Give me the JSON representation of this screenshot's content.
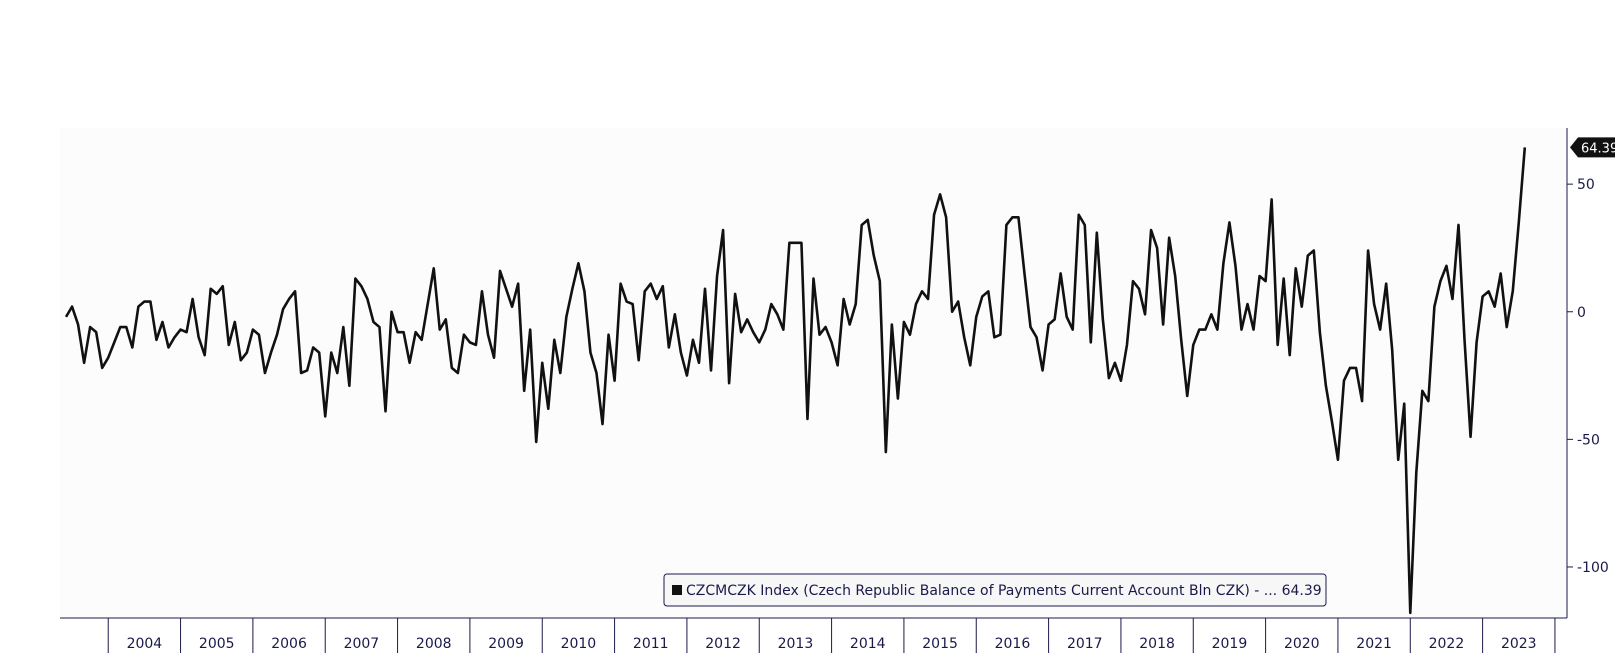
{
  "chart_data": {
    "type": "line",
    "title": "",
    "xlabel": "",
    "ylabel": "",
    "ylim": [
      -120,
      72
    ],
    "xlim": [
      "2003-05",
      "2024-03"
    ],
    "y_ticks": [
      50,
      0,
      -50,
      -100
    ],
    "y_tick_labels": [
      "50",
      "0",
      "-50",
      "-100"
    ],
    "years": [
      "2004",
      "2005",
      "2006",
      "2007",
      "2008",
      "2009",
      "2010",
      "2011",
      "2012",
      "2013",
      "2014",
      "2015",
      "2016",
      "2017",
      "2018",
      "2019",
      "2020",
      "2021",
      "2022",
      "2023"
    ],
    "grid": false,
    "legend_position": "bottom-center",
    "line_color": "#111111",
    "last_value_label": "64.39",
    "series": [
      {
        "name": "CZCMCZK Index (Czech Republic Balance of Payments Current Account Bln CZK) - ... 64.39",
        "start": "2003-06",
        "frequency": "monthly",
        "values": [
          -2,
          2,
          -5,
          -20,
          -6,
          -8,
          -22,
          -18,
          -12,
          -6,
          -6,
          -14,
          2,
          4,
          4,
          -11,
          -4,
          -14,
          -10,
          -7,
          -8,
          5,
          -10,
          -17,
          9,
          7,
          10,
          -13,
          -4,
          -19,
          -16,
          -7,
          -9,
          -24,
          -16,
          -9,
          1,
          5,
          8,
          -24,
          -23,
          -14,
          -16,
          -41,
          -16,
          -24,
          -6,
          -29,
          13,
          10,
          5,
          -4,
          -6,
          -39,
          0,
          -8,
          -8,
          -20,
          -8,
          -11,
          3,
          17,
          -7,
          -3,
          -22,
          -24,
          -9,
          -12,
          -13,
          8,
          -9,
          -18,
          16,
          9,
          2,
          11,
          -31,
          -7,
          -51,
          -20,
          -38,
          -11,
          -24,
          -2,
          9,
          19,
          8,
          -16,
          -24,
          -44,
          -9,
          -27,
          11,
          4,
          3,
          -19,
          8,
          11,
          5,
          10,
          -14,
          -1,
          -16,
          -25,
          -11,
          -20,
          9,
          -23,
          14,
          32,
          -28,
          7,
          -8,
          -3,
          -8,
          -12,
          -7,
          3,
          -1,
          -7,
          27,
          27,
          27,
          -42,
          13,
          -9,
          -6,
          -12,
          -21,
          5,
          -5,
          3,
          34,
          36,
          22,
          12,
          -55,
          -5,
          -34,
          -4,
          -9,
          3,
          8,
          5,
          38,
          46,
          37,
          0,
          4,
          -10,
          -21,
          -2,
          6,
          8,
          -10,
          -9,
          34,
          37,
          37,
          15,
          -6,
          -10,
          -23,
          -5,
          -3,
          15,
          -2,
          -7,
          38,
          34,
          -12,
          31,
          -3,
          -26,
          -20,
          -27,
          -13,
          12,
          9,
          -1,
          32,
          25,
          -5,
          29,
          14,
          -11,
          -33,
          -13,
          -7,
          -7,
          -1,
          -7,
          19,
          35,
          18,
          -7,
          3,
          -7,
          14,
          12,
          44,
          -13,
          13,
          -17,
          17,
          2,
          22,
          24,
          -8,
          -29,
          -43,
          -58,
          -27,
          -22,
          -22,
          -35,
          24,
          3,
          -7,
          11,
          -15,
          -58,
          -36,
          -118,
          -63,
          -31,
          -35,
          2,
          12,
          18,
          5,
          34,
          -11,
          -49,
          -12,
          6,
          8,
          2,
          15,
          -6,
          8,
          35,
          64.39
        ]
      }
    ]
  }
}
